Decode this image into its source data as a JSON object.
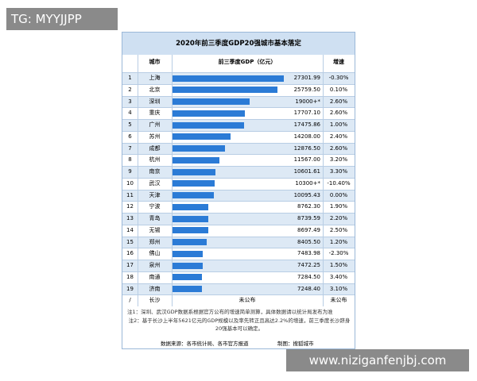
{
  "watermark": "TG: MYYJJPP",
  "site": "www.niziganfenjbj.com",
  "chart_data": {
    "type": "bar",
    "orientation": "horizontal",
    "title": "2020年前三季度GDP20强城市基本落定",
    "columns": [
      "城市",
      "前三季度GDP（亿元）",
      "增速"
    ],
    "ranks": [
      "1",
      "2",
      "3",
      "4",
      "5",
      "6",
      "7",
      "8",
      "9",
      "10",
      "11",
      "12",
      "13",
      "14",
      "15",
      "16",
      "17",
      "18",
      "19",
      "/"
    ],
    "categories": [
      "上海",
      "北京",
      "深圳",
      "重庆",
      "广州",
      "苏州",
      "成都",
      "杭州",
      "南京",
      "武汉",
      "天津",
      "宁波",
      "青岛",
      "无锡",
      "郑州",
      "佛山",
      "泉州",
      "南通",
      "济南",
      "长沙"
    ],
    "values": [
      27301.99,
      25759.5,
      19000,
      17707.1,
      17475.86,
      14208,
      12876.5,
      11567,
      10601.61,
      10300,
      10095.43,
      8762.3,
      8739.59,
      8697.49,
      8405.5,
      7483.98,
      7472.25,
      7284.5,
      7248.4,
      null
    ],
    "value_labels": [
      "27301.99",
      "25759.50",
      "19000+*",
      "17707.10",
      "17475.86",
      "14208.00",
      "12876.50",
      "11567.00",
      "10601.61",
      "10300+*",
      "10095.43",
      "8762.30",
      "8739.59",
      "8697.49",
      "8405.50",
      "7483.98",
      "7472.25",
      "7284.50",
      "7248.40",
      "未公布"
    ],
    "growth": [
      "-0.30%",
      "0.10%",
      "2.60%",
      "2.60%",
      "1.00%",
      "2.40%",
      "2.60%",
      "3.20%",
      "3.30%",
      "-10.40%",
      "0.00%",
      "1.90%",
      "2.20%",
      "2.50%",
      "1.20%",
      "-2.30%",
      "1.50%",
      "3.40%",
      "3.10%",
      "未公布"
    ],
    "color": "#2b7bd6",
    "xlim": [
      0,
      28000
    ],
    "notes": [
      "注1：深圳、武汉GDP数据系根据官方公布的增速简单测算，具体数据请以统计局发布为准",
      "注2：基于长沙上半年5621亿元的GDP规模以及率先转正且高达2.2%的增速，前三季度长沙跻身20强基本可以确定。"
    ],
    "source": "数据来源：各市统计局、各市官方报道",
    "credit": "制图：搜狐城市"
  }
}
